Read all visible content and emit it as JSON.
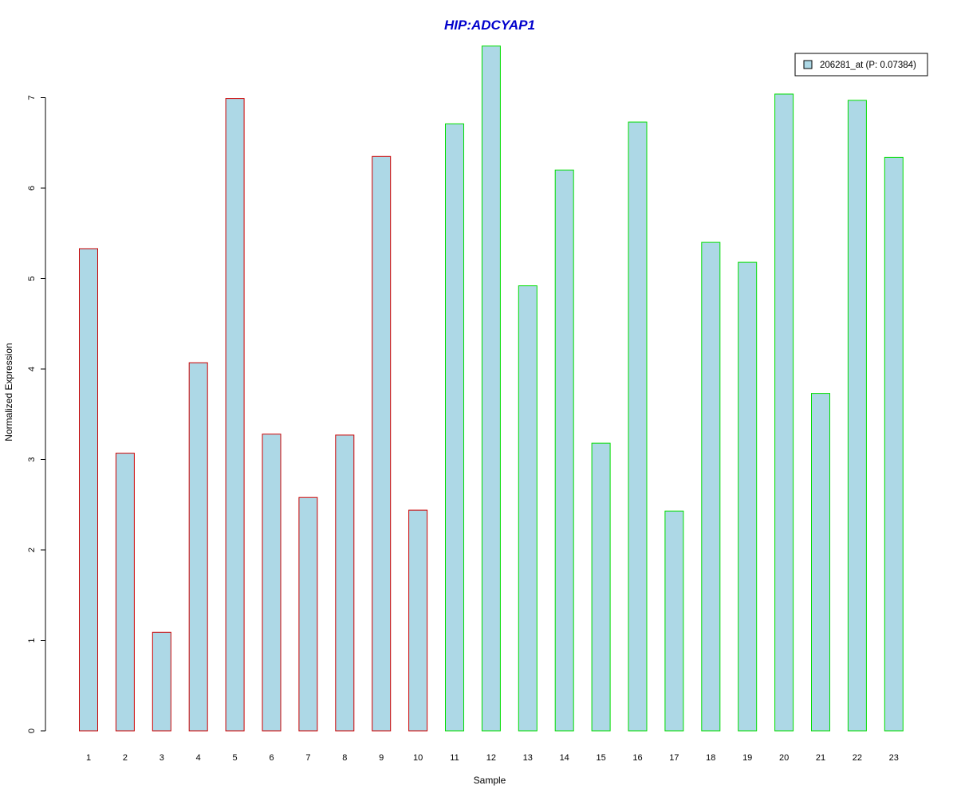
{
  "chart_data": {
    "type": "bar",
    "title": "HIP:ADCYAP1",
    "xlabel": "Sample",
    "ylabel": "Normalized Expression",
    "categories": [
      "1",
      "2",
      "3",
      "4",
      "5",
      "6",
      "7",
      "8",
      "9",
      "10",
      "11",
      "12",
      "13",
      "14",
      "15",
      "16",
      "17",
      "18",
      "19",
      "20",
      "21",
      "22",
      "23"
    ],
    "series": [
      {
        "name": "206281_at (P: 0.07384)",
        "values": [
          5.33,
          3.07,
          1.09,
          4.07,
          6.99,
          3.28,
          2.58,
          3.27,
          6.35,
          2.44,
          6.71,
          7.57,
          4.92,
          6.2,
          3.18,
          6.73,
          2.43,
          5.4,
          5.18,
          7.04,
          3.73,
          6.97,
          6.34
        ],
        "fill": "#add8e6"
      }
    ],
    "group_border_colors": [
      "#cc0000",
      "#cc0000",
      "#cc0000",
      "#cc0000",
      "#cc0000",
      "#cc0000",
      "#cc0000",
      "#cc0000",
      "#cc0000",
      "#cc0000",
      "#00dd00",
      "#00dd00",
      "#00dd00",
      "#00dd00",
      "#00dd00",
      "#00dd00",
      "#00dd00",
      "#00dd00",
      "#00dd00",
      "#00dd00",
      "#00dd00",
      "#00dd00",
      "#00dd00"
    ],
    "yticks": [
      0,
      1,
      2,
      3,
      4,
      5,
      6,
      7
    ],
    "ylim": [
      0,
      7.6
    ],
    "grid": false,
    "legend_position": "top-right",
    "title_color": "#0000cc"
  }
}
